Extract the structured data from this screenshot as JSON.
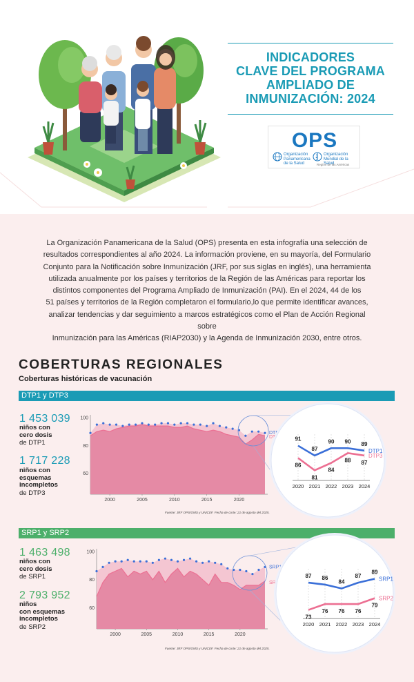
{
  "title": {
    "lines": [
      "INDICADORES",
      "CLAVE DEL PROGRAMA",
      "AMPLIADO DE",
      "INMUNIZACIÓN: 2024"
    ]
  },
  "logo": {
    "name": "OPS",
    "org1_line1": "Organización",
    "org1_line2": "Panamericana",
    "org1_line3": "de la Salud",
    "org2_line1": "Organización",
    "org2_line2": "Mundial de la Salud",
    "region": "Región de las Américas"
  },
  "intro": {
    "lines": [
      "La Organización Panamericana de la Salud (OPS) presenta en esta infografía una selección de",
      "resultados correspondientes al año 2024. La información proviene, en su mayoría, del Formulario",
      "Conjunto para la Notificación sobre Inmunización (JRF, por sus siglas en inglés), una herramienta",
      "utilizada anualmente por los países y territorios de la Región de las Américas para reportar los",
      "distintos componentes del Programa Ampliado de Inmunización (PAI). En el 2024, 44 de los",
      "51 países y territorios de la Región completaron el formulario,lo que permite identificar avances,",
      "analizar tendencias y dar seguimiento a marcos estratégicos como el Plan de Acción Regional sobre",
      "Inmunización para las Américas (RIAP2030) y la Agenda de Inmunización 2030, entre otros."
    ]
  },
  "section": {
    "title": "COBERTURAS REGIONALES",
    "subtitle": "Coberturas históricas de vacunación"
  },
  "dtp": {
    "bar_label": "DTP1 y DTP3",
    "stat1_num": "1 453 039",
    "stat1_bold1": "niños con",
    "stat1_bold2": "cero dosis",
    "stat1_norm": "de DTP1",
    "stat2_num": "1 717 228",
    "stat2_bold1": "niños con",
    "stat2_bold2": "esquemas",
    "stat2_bold3": "incompletos",
    "stat2_norm": "de DTP3",
    "source": "Fuente: JRF OPS/OMS y UNICEF. Fecha de corte: 21 de agosto del 2025."
  },
  "srp": {
    "bar_label": "SRP1 y SRP2",
    "stat1_num": "1 463 498",
    "stat1_bold1": "niños con",
    "stat1_bold2": "cero dosis",
    "stat1_norm": "de SRP1",
    "stat2_num": "2 793 952",
    "stat2_bold1": "niños",
    "stat2_bold2": "con esquemas",
    "stat2_bold3": "incompletos",
    "stat2_norm": "de SRP2",
    "source": "Fuente: JRF OPS/OMS y UNICEF. Fecha de corte: 21 de agosto del 2025."
  },
  "colors": {
    "teal": "#1a9bb5",
    "green": "#4caf6a",
    "blue_series": "#3a6fd8",
    "pink_series": "#ec6f92",
    "area_pink": "#e58aa5",
    "area_light": "#f4c6d2"
  },
  "chart_data": [
    {
      "type": "area",
      "title": "DTP1 y DTP3",
      "x": [
        1997,
        1998,
        1999,
        2000,
        2001,
        2002,
        2003,
        2004,
        2005,
        2006,
        2007,
        2008,
        2009,
        2010,
        2011,
        2012,
        2013,
        2014,
        2015,
        2016,
        2017,
        2018,
        2019,
        2020,
        2021,
        2022,
        2023,
        2024
      ],
      "ylim": [
        45,
        100
      ],
      "yticks": [
        60,
        80,
        100
      ],
      "xticks": [
        2000,
        2005,
        2010,
        2015,
        2020
      ],
      "series": [
        {
          "name": "DTP1",
          "values": [
            89,
            95,
            96,
            95,
            95,
            94,
            95,
            95,
            96,
            95,
            95,
            96,
            96,
            95,
            96,
            96,
            95,
            95,
            94,
            96,
            94,
            93,
            92,
            91,
            87,
            90,
            90,
            89
          ]
        },
        {
          "name": "DTP3",
          "values": [
            87,
            90,
            91,
            90,
            92,
            93,
            94,
            94,
            95,
            94,
            94,
            94,
            94,
            93,
            93,
            94,
            92,
            91,
            90,
            91,
            90,
            88,
            87,
            86,
            81,
            84,
            88,
            87
          ]
        }
      ]
    },
    {
      "type": "line",
      "title": "DTP1 y DTP3 2020-2024",
      "x": [
        "2020",
        "2021",
        "2022",
        "2023",
        "2024"
      ],
      "ylim": [
        78,
        94
      ],
      "series": [
        {
          "name": "DTP1",
          "values": [
            91,
            87,
            90,
            90,
            89
          ]
        },
        {
          "name": "DTP3",
          "values": [
            86,
            81,
            84,
            88,
            87
          ]
        }
      ]
    },
    {
      "type": "area",
      "title": "SRP1 y SRP2",
      "x": [
        1997,
        1998,
        1999,
        2000,
        2001,
        2002,
        2003,
        2004,
        2005,
        2006,
        2007,
        2008,
        2009,
        2010,
        2011,
        2012,
        2013,
        2014,
        2015,
        2016,
        2017,
        2018,
        2019,
        2020,
        2021,
        2022,
        2023,
        2024
      ],
      "ylim": [
        45,
        100
      ],
      "yticks": [
        60,
        80,
        100
      ],
      "xticks": [
        2000,
        2005,
        2010,
        2015,
        2020
      ],
      "series": [
        {
          "name": "SRP1",
          "values": [
            86,
            89,
            92,
            93,
            93,
            94,
            93,
            93,
            93,
            92,
            94,
            95,
            94,
            93,
            94,
            95,
            93,
            92,
            93,
            92,
            91,
            88,
            87,
            87,
            86,
            84,
            87,
            89
          ]
        },
        {
          "name": "SRP2",
          "values": [
            68,
            78,
            84,
            86,
            88,
            82,
            86,
            84,
            86,
            80,
            86,
            78,
            84,
            88,
            82,
            86,
            84,
            80,
            76,
            84,
            78,
            78,
            76,
            73,
            76,
            76,
            76,
            79
          ]
        }
      ]
    },
    {
      "type": "line",
      "title": "SRP1 y SRP2 2020-2024",
      "x": [
        "2020",
        "2021",
        "2022",
        "2023",
        "2024"
      ],
      "ylim": [
        70,
        92
      ],
      "series": [
        {
          "name": "SRP1",
          "values": [
            87,
            86,
            84,
            87,
            89
          ]
        },
        {
          "name": "SRP2",
          "values": [
            73,
            76,
            76,
            76,
            79
          ]
        }
      ]
    }
  ]
}
